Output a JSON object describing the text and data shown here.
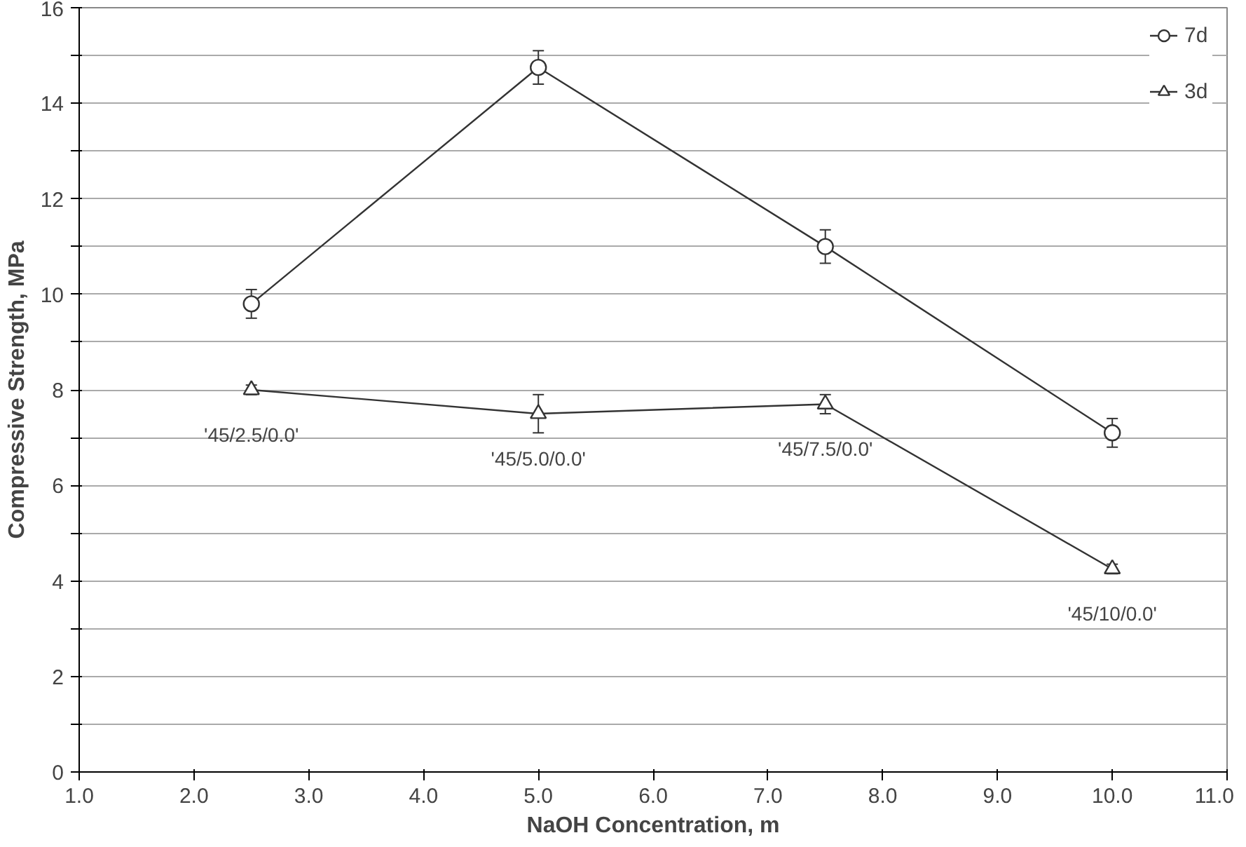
{
  "chart_data": {
    "type": "line",
    "xlabel": "NaOH Concentration, m",
    "ylabel": "Compressive Strength, MPa",
    "x": [
      2.5,
      5.0,
      7.5,
      10.0
    ],
    "series": [
      {
        "name": "7d",
        "color": "#333333",
        "marker": "circle",
        "values": [
          9.8,
          14.75,
          11.0,
          7.1
        ],
        "errors": [
          0.3,
          0.35,
          0.35,
          0.3
        ]
      },
      {
        "name": "3d",
        "color": "#333333",
        "marker": "triangle",
        "values": [
          8.0,
          7.5,
          7.7,
          4.25
        ],
        "errors": [
          0.1,
          0.4,
          0.2,
          0.1
        ]
      }
    ],
    "xlim": [
      1.0,
      11.0
    ],
    "xticks": [
      {
        "value": 1,
        "label": "1.0"
      },
      {
        "value": 2,
        "label": "2.0"
      },
      {
        "value": 3,
        "label": "3.0"
      },
      {
        "value": 4,
        "label": "4.0"
      },
      {
        "value": 5,
        "label": "5.0"
      },
      {
        "value": 6,
        "label": "6.0"
      },
      {
        "value": 7,
        "label": "7.0"
      },
      {
        "value": 8,
        "label": "8.0"
      },
      {
        "value": 9,
        "label": "9.0"
      },
      {
        "value": 10,
        "label": "10.0"
      },
      {
        "value": 11,
        "label": "11.0"
      }
    ],
    "ylim": [
      0,
      16
    ],
    "yticks": [
      0,
      {
        "value": 1,
        "label": null
      },
      2,
      {
        "value": 3,
        "label": null
      },
      4,
      {
        "value": 5,
        "label": null
      },
      6,
      {
        "value": 7,
        "label": null
      },
      8,
      {
        "value": 9,
        "label": null
      },
      10,
      {
        "value": 11,
        "label": null
      },
      12,
      {
        "value": 13,
        "label": null
      },
      14,
      {
        "value": 15,
        "label": null
      },
      16
    ],
    "grid": "y",
    "legend": "top right",
    "line_style": "solid",
    "annotations": [
      {
        "text": "'45/2.5/0.0'",
        "x": 2.5,
        "y": 8.0
      },
      {
        "text": "'45/5.0/0.0'",
        "x": 5.0,
        "y": 7.5
      },
      {
        "text": "'45/7.5/0.0'",
        "x": 7.5,
        "y": 7.7
      },
      {
        "text": "'45/10/0.0'",
        "x": 10.0,
        "y": 4.25
      }
    ]
  }
}
